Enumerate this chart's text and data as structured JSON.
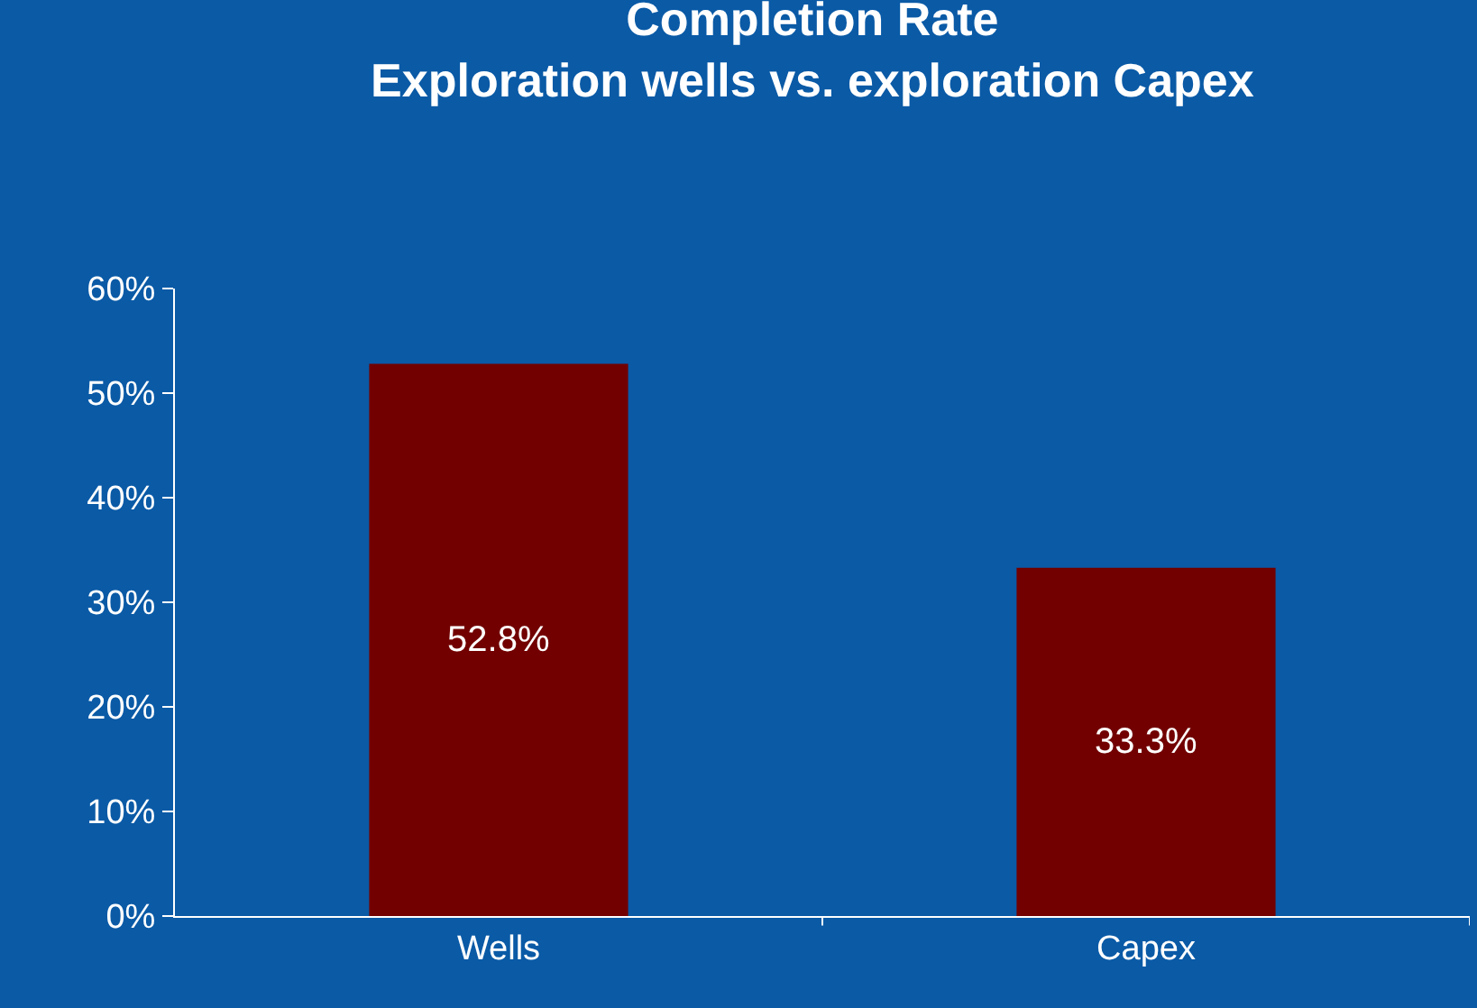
{
  "chart_data": {
    "type": "bar",
    "title": "Completion Rate",
    "subtitle": "Exploration wells vs. exploration Capex",
    "categories": [
      "Wells",
      "Capex"
    ],
    "values": [
      52.8,
      33.3
    ],
    "value_labels": [
      "52.8%",
      "33.3%"
    ],
    "color": "#720000",
    "ylim": [
      0,
      60
    ],
    "yticks": [
      {
        "value": 0,
        "label": "0%"
      },
      {
        "value": 10,
        "label": "10%"
      },
      {
        "value": 20,
        "label": "20%"
      },
      {
        "value": 30,
        "label": "30%"
      },
      {
        "value": 40,
        "label": "40%"
      },
      {
        "value": 50,
        "label": "50%"
      },
      {
        "value": 60,
        "label": "60%"
      }
    ],
    "grid": false,
    "legend": false
  }
}
